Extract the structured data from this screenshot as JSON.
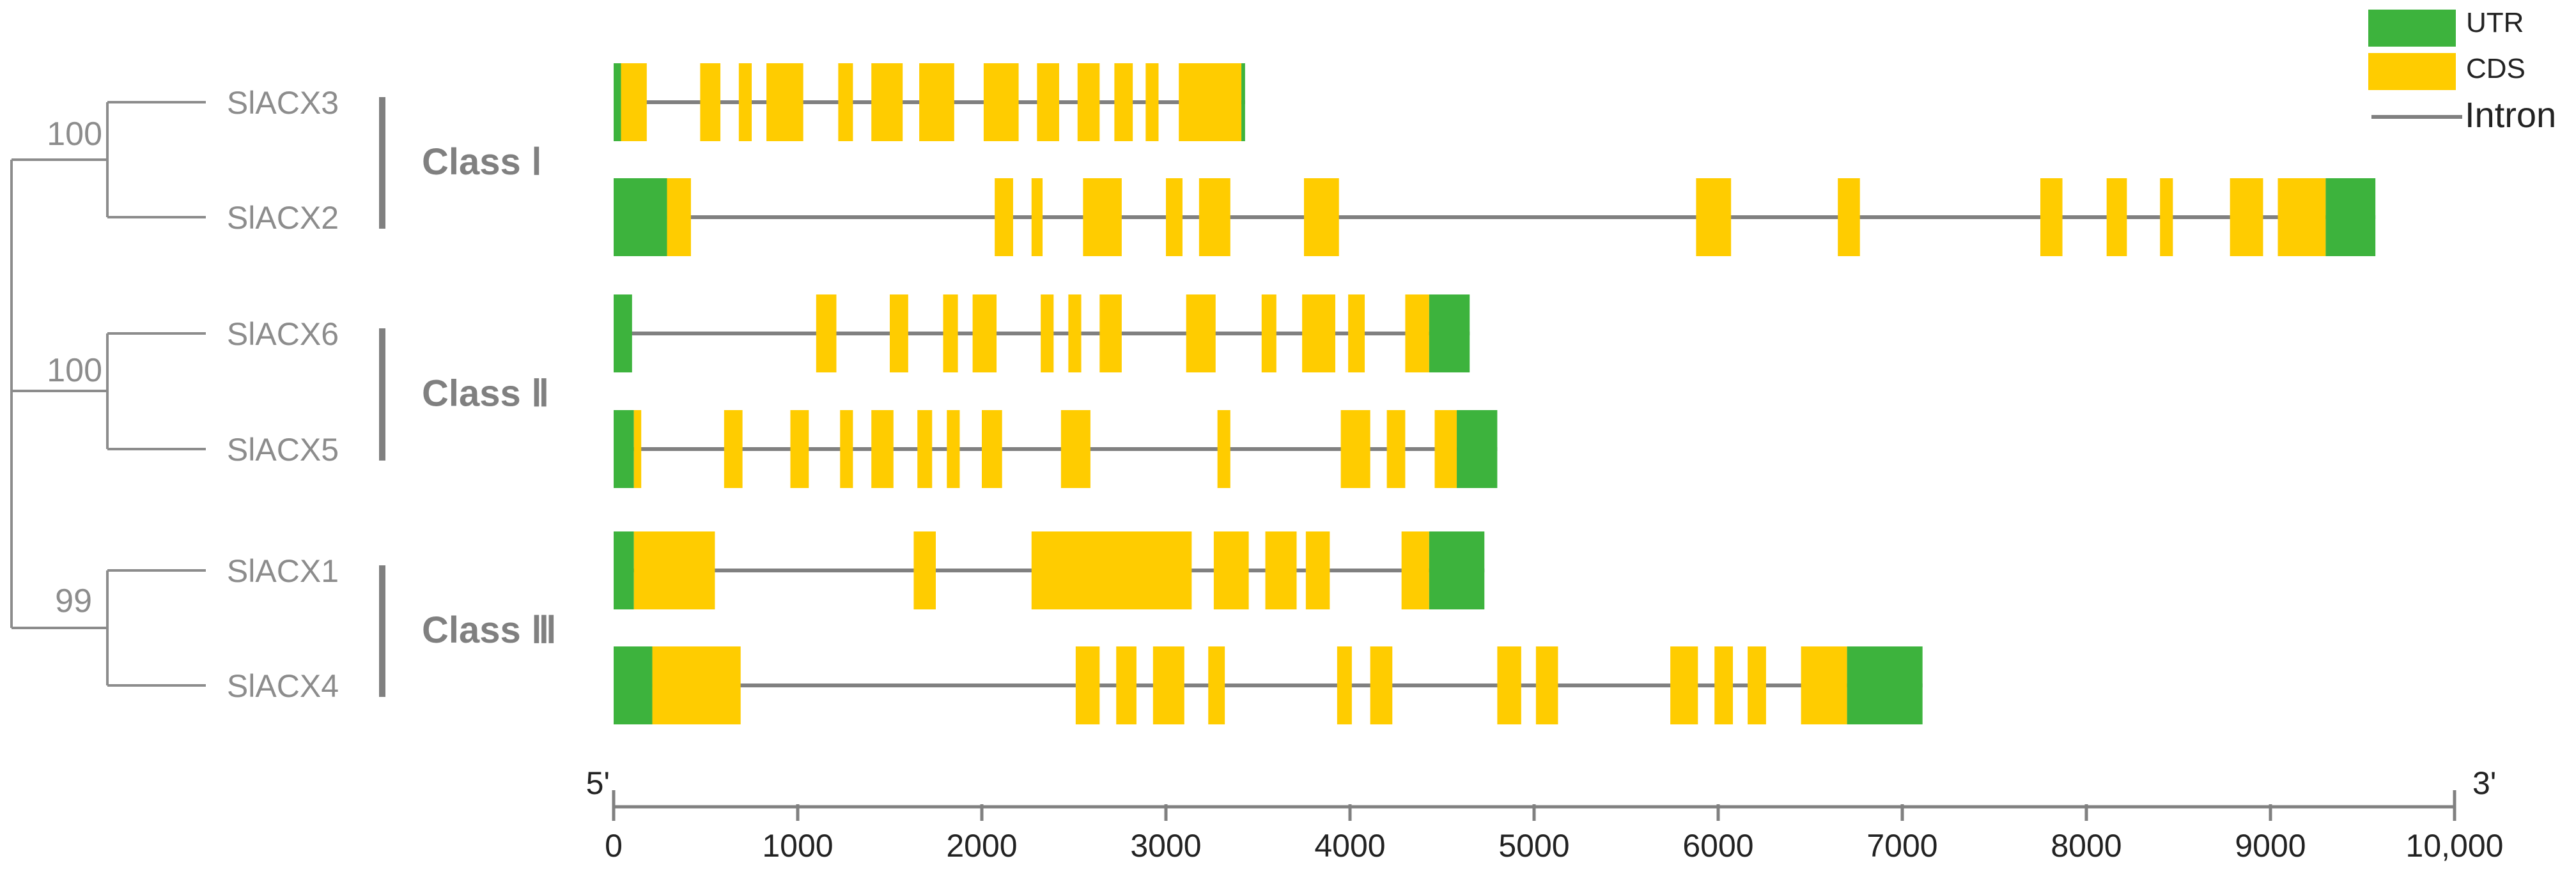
{
  "colors": {
    "utr": "#3DB33D",
    "cds": "#FFCC00",
    "intron": "#808080",
    "tree": "#8C8C8C",
    "label": "#8C8C8C",
    "class_text": "#808080",
    "axis": "#808080",
    "text_dark": "#222222"
  },
  "legend": {
    "utr": "UTR",
    "cds": "CDS",
    "intron": "Intron"
  },
  "tree": {
    "bootstraps": [
      "100",
      "100",
      "99"
    ]
  },
  "axis": {
    "min": 0,
    "max": 10000,
    "five_prime": "5'",
    "three_prime": "3'",
    "ticks": [
      {
        "value": 0,
        "label": "0"
      },
      {
        "value": 1000,
        "label": "1000"
      },
      {
        "value": 2000,
        "label": "2000"
      },
      {
        "value": 3000,
        "label": "3000"
      },
      {
        "value": 4000,
        "label": "4000"
      },
      {
        "value": 5000,
        "label": "5000"
      },
      {
        "value": 6000,
        "label": "6000"
      },
      {
        "value": 7000,
        "label": "7000"
      },
      {
        "value": 8000,
        "label": "8000"
      },
      {
        "value": 9000,
        "label": "9000"
      },
      {
        "value": 10000,
        "label": "10,000"
      }
    ]
  },
  "classes": [
    {
      "label": "Class Ⅰ",
      "genes": [
        "SlACX3",
        "SlACX2"
      ]
    },
    {
      "label": "Class Ⅱ",
      "genes": [
        "SlACX6",
        "SlACX5"
      ]
    },
    {
      "label": "Class Ⅲ",
      "genes": [
        "SlACX1",
        "SlACX4"
      ]
    }
  ],
  "genes": [
    {
      "name": "SlACX3",
      "length": 3430,
      "features": [
        {
          "type": "UTR",
          "start": 0,
          "end": 40
        },
        {
          "type": "CDS",
          "start": 40,
          "end": 180
        },
        {
          "type": "CDS",
          "start": 470,
          "end": 580
        },
        {
          "type": "CDS",
          "start": 680,
          "end": 750
        },
        {
          "type": "CDS",
          "start": 830,
          "end": 1030
        },
        {
          "type": "CDS",
          "start": 1220,
          "end": 1300
        },
        {
          "type": "CDS",
          "start": 1400,
          "end": 1570
        },
        {
          "type": "CDS",
          "start": 1660,
          "end": 1850
        },
        {
          "type": "CDS",
          "start": 2010,
          "end": 2200
        },
        {
          "type": "CDS",
          "start": 2300,
          "end": 2420
        },
        {
          "type": "CDS",
          "start": 2520,
          "end": 2640
        },
        {
          "type": "CDS",
          "start": 2720,
          "end": 2820
        },
        {
          "type": "CDS",
          "start": 2890,
          "end": 2960
        },
        {
          "type": "CDS",
          "start": 3070,
          "end": 3410
        },
        {
          "type": "UTR",
          "start": 3410,
          "end": 3430
        }
      ]
    },
    {
      "name": "SlACX2",
      "length": 9570,
      "features": [
        {
          "type": "UTR",
          "start": 0,
          "end": 290
        },
        {
          "type": "CDS",
          "start": 290,
          "end": 420
        },
        {
          "type": "CDS",
          "start": 2070,
          "end": 2170
        },
        {
          "type": "CDS",
          "start": 2270,
          "end": 2330
        },
        {
          "type": "CDS",
          "start": 2550,
          "end": 2760
        },
        {
          "type": "CDS",
          "start": 3000,
          "end": 3090
        },
        {
          "type": "CDS",
          "start": 3180,
          "end": 3350
        },
        {
          "type": "CDS",
          "start": 3750,
          "end": 3940
        },
        {
          "type": "CDS",
          "start": 5880,
          "end": 6070
        },
        {
          "type": "CDS",
          "start": 6650,
          "end": 6770
        },
        {
          "type": "CDS",
          "start": 7750,
          "end": 7870
        },
        {
          "type": "CDS",
          "start": 8110,
          "end": 8220
        },
        {
          "type": "CDS",
          "start": 8400,
          "end": 8470
        },
        {
          "type": "CDS",
          "start": 8780,
          "end": 8960
        },
        {
          "type": "CDS",
          "start": 9040,
          "end": 9300
        },
        {
          "type": "UTR",
          "start": 9300,
          "end": 9570
        }
      ]
    },
    {
      "name": "SlACX6",
      "length": 4650,
      "features": [
        {
          "type": "UTR",
          "start": 0,
          "end": 100
        },
        {
          "type": "CDS",
          "start": 1100,
          "end": 1210
        },
        {
          "type": "CDS",
          "start": 1500,
          "end": 1600
        },
        {
          "type": "CDS",
          "start": 1790,
          "end": 1870
        },
        {
          "type": "CDS",
          "start": 1950,
          "end": 2080
        },
        {
          "type": "CDS",
          "start": 2320,
          "end": 2390
        },
        {
          "type": "CDS",
          "start": 2470,
          "end": 2540
        },
        {
          "type": "CDS",
          "start": 2640,
          "end": 2760
        },
        {
          "type": "CDS",
          "start": 3110,
          "end": 3270
        },
        {
          "type": "CDS",
          "start": 3520,
          "end": 3600
        },
        {
          "type": "CDS",
          "start": 3740,
          "end": 3920
        },
        {
          "type": "CDS",
          "start": 3990,
          "end": 4080
        },
        {
          "type": "CDS",
          "start": 4300,
          "end": 4430
        },
        {
          "type": "UTR",
          "start": 4430,
          "end": 4650
        }
      ]
    },
    {
      "name": "SlACX5",
      "length": 4800,
      "features": [
        {
          "type": "UTR",
          "start": 0,
          "end": 110
        },
        {
          "type": "CDS",
          "start": 110,
          "end": 150
        },
        {
          "type": "CDS",
          "start": 600,
          "end": 700
        },
        {
          "type": "CDS",
          "start": 960,
          "end": 1060
        },
        {
          "type": "CDS",
          "start": 1230,
          "end": 1300
        },
        {
          "type": "CDS",
          "start": 1400,
          "end": 1520
        },
        {
          "type": "CDS",
          "start": 1650,
          "end": 1730
        },
        {
          "type": "CDS",
          "start": 1810,
          "end": 1880
        },
        {
          "type": "CDS",
          "start": 2000,
          "end": 2110
        },
        {
          "type": "CDS",
          "start": 2430,
          "end": 2590
        },
        {
          "type": "CDS",
          "start": 3280,
          "end": 3350
        },
        {
          "type": "CDS",
          "start": 3950,
          "end": 4110
        },
        {
          "type": "CDS",
          "start": 4200,
          "end": 4300
        },
        {
          "type": "CDS",
          "start": 4460,
          "end": 4580
        },
        {
          "type": "UTR",
          "start": 4580,
          "end": 4800
        }
      ]
    },
    {
      "name": "SlACX1",
      "length": 4730,
      "features": [
        {
          "type": "UTR",
          "start": 0,
          "end": 110
        },
        {
          "type": "CDS",
          "start": 110,
          "end": 550
        },
        {
          "type": "CDS",
          "start": 1630,
          "end": 1750
        },
        {
          "type": "CDS",
          "start": 2270,
          "end": 3140
        },
        {
          "type": "CDS",
          "start": 3260,
          "end": 3450
        },
        {
          "type": "CDS",
          "start": 3540,
          "end": 3710
        },
        {
          "type": "CDS",
          "start": 3760,
          "end": 3890
        },
        {
          "type": "CDS",
          "start": 4280,
          "end": 4430
        },
        {
          "type": "UTR",
          "start": 4430,
          "end": 4730
        }
      ]
    },
    {
      "name": "SlACX4",
      "length": 7110,
      "features": [
        {
          "type": "UTR",
          "start": 0,
          "end": 210
        },
        {
          "type": "CDS",
          "start": 210,
          "end": 690
        },
        {
          "type": "CDS",
          "start": 2510,
          "end": 2640
        },
        {
          "type": "CDS",
          "start": 2730,
          "end": 2840
        },
        {
          "type": "CDS",
          "start": 2930,
          "end": 3100
        },
        {
          "type": "CDS",
          "start": 3230,
          "end": 3320
        },
        {
          "type": "CDS",
          "start": 3930,
          "end": 4010
        },
        {
          "type": "CDS",
          "start": 4110,
          "end": 4230
        },
        {
          "type": "CDS",
          "start": 4800,
          "end": 4930
        },
        {
          "type": "CDS",
          "start": 5010,
          "end": 5130
        },
        {
          "type": "CDS",
          "start": 5740,
          "end": 5890
        },
        {
          "type": "CDS",
          "start": 5980,
          "end": 6080
        },
        {
          "type": "CDS",
          "start": 6160,
          "end": 6260
        },
        {
          "type": "CDS",
          "start": 6450,
          "end": 6700
        },
        {
          "type": "UTR",
          "start": 6700,
          "end": 7110
        }
      ]
    }
  ]
}
